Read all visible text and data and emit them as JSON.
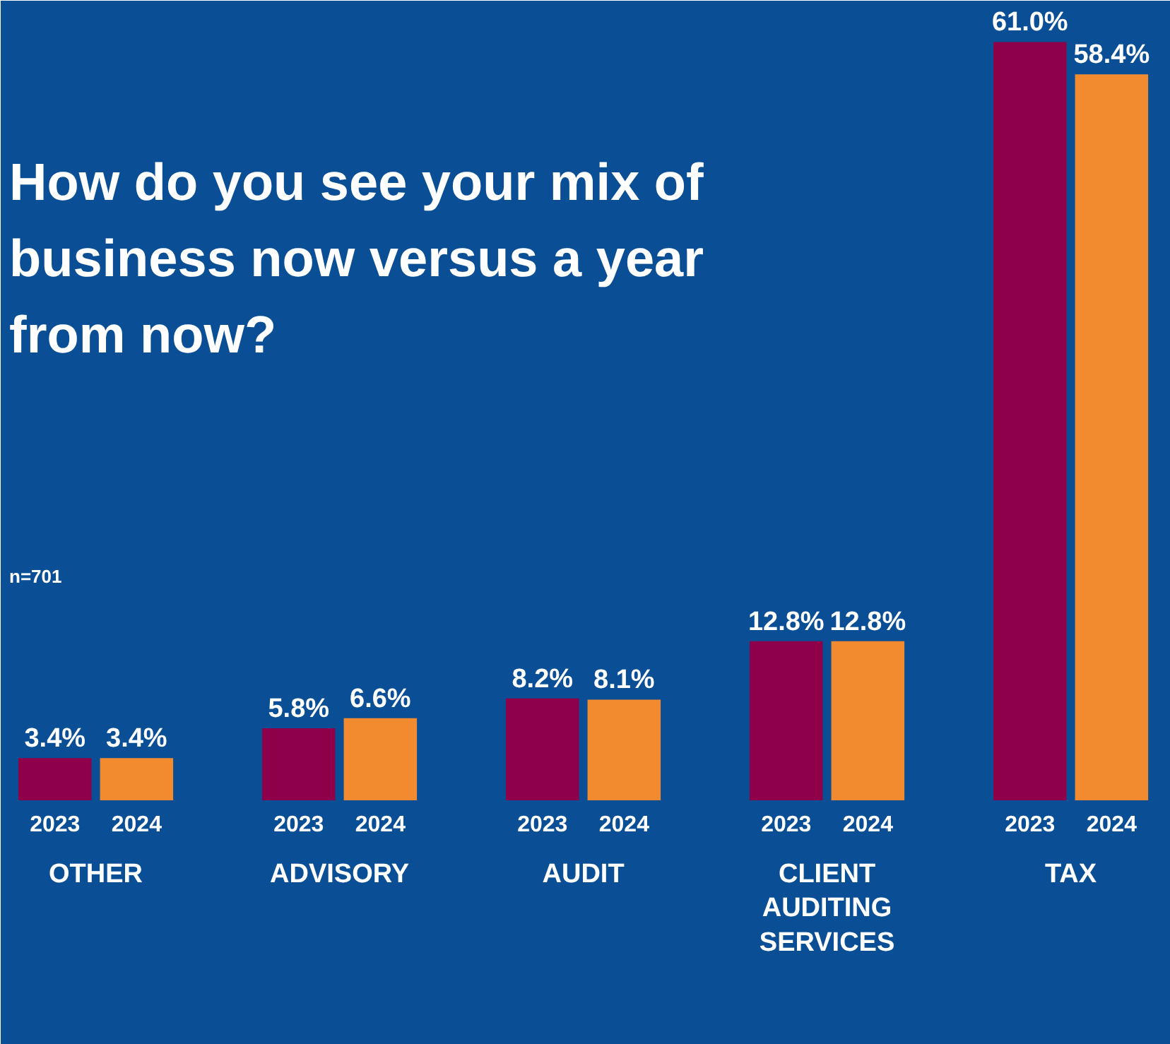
{
  "chart_data": {
    "type": "bar",
    "title": "How do you see your mix of business now versus a year from now?",
    "annotations": [
      "n=701"
    ],
    "categories": [
      "OTHER",
      "ADVISORY",
      "AUDIT",
      "CLIENT AUDITING SERVICES",
      "TAX"
    ],
    "series": [
      {
        "name": "2023",
        "color": "#8e0049",
        "values": [
          3.4,
          5.8,
          8.2,
          12.8,
          61.0
        ],
        "value_labels": [
          "3.4%",
          "5.8%",
          "8.2%",
          "12.8%",
          "61.0%"
        ]
      },
      {
        "name": "2024",
        "color": "#f28b30",
        "values": [
          3.4,
          6.6,
          8.1,
          12.8,
          58.4
        ],
        "value_labels": [
          "3.4%",
          "6.6%",
          "8.1%",
          "12.8%",
          "58.4%"
        ]
      }
    ]
  }
}
